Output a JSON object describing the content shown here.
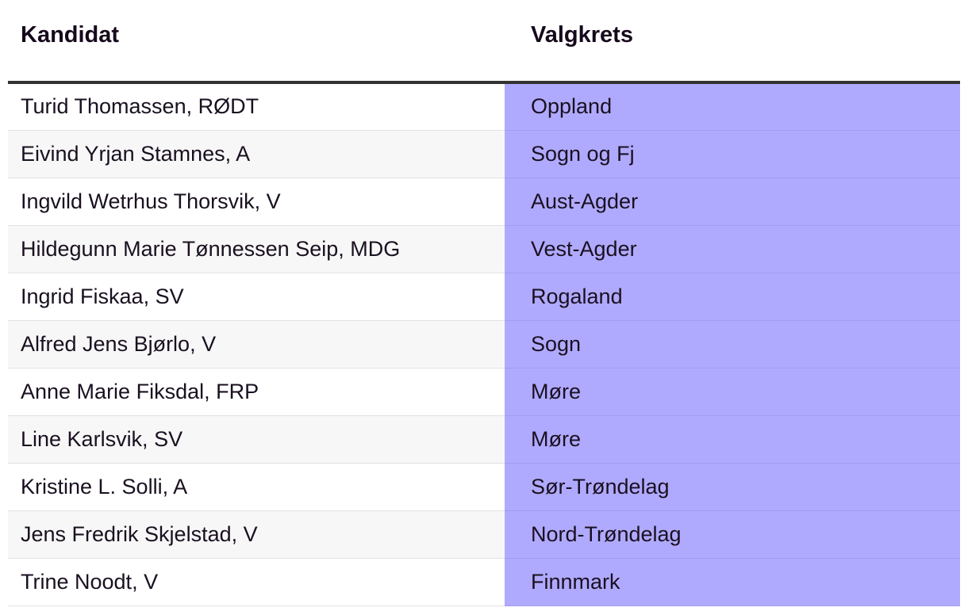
{
  "table": {
    "headers": {
      "candidate": "Kandidat",
      "district": "Valgkrets"
    },
    "rows": [
      {
        "candidate": "Turid Thomassen, RØDT",
        "district": "Oppland"
      },
      {
        "candidate": "Eivind Yrjan Stamnes, A",
        "district": "Sogn og Fj"
      },
      {
        "candidate": "Ingvild Wetrhus Thorsvik, V",
        "district": "Aust-Agder"
      },
      {
        "candidate": "Hildegunn Marie Tønnessen Seip, MDG",
        "district": "Vest-Agder"
      },
      {
        "candidate": "Ingrid Fiskaa, SV",
        "district": "Rogaland"
      },
      {
        "candidate": "Alfred Jens Bjørlo, V",
        "district": "Sogn"
      },
      {
        "candidate": "Anne Marie Fiksdal, FRP",
        "district": "Møre"
      },
      {
        "candidate": "Line Karlsvik, SV",
        "district": "Møre"
      },
      {
        "candidate": "Kristine L. Solli, A",
        "district": "Sør-Trøndelag"
      },
      {
        "candidate": "Jens Fredrik Skjelstad, V",
        "district": "Nord-Trøndelag"
      },
      {
        "candidate": "Trine Noodt, V",
        "district": "Finnmark"
      }
    ]
  },
  "colors": {
    "highlight_column": "#b0aaff",
    "header_rule": "#333333",
    "stripe": "#f7f7f7"
  }
}
